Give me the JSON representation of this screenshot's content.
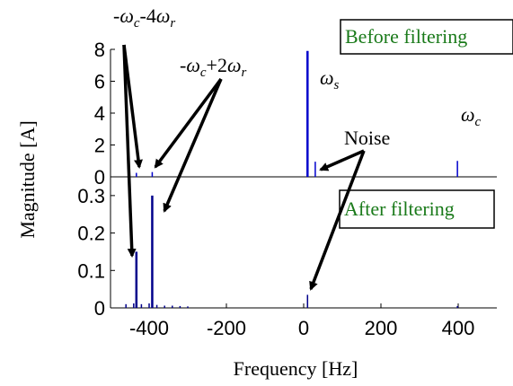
{
  "chart_data": [
    {
      "panel": "top",
      "type": "line",
      "title": "",
      "legend_box": "Before filtering",
      "ylabel": "Magnitude [A]",
      "ylim": [
        0,
        8
      ],
      "yticks": [
        "0",
        "2",
        "4",
        "6",
        "8"
      ],
      "xlim": [
        -500,
        500
      ],
      "series": [
        {
          "color": "#0000cc",
          "x": [
            -433,
            -392,
            10,
            30,
            398
          ],
          "values": [
            0.25,
            0.3,
            7.9,
            0.95,
            1.0
          ]
        }
      ]
    },
    {
      "panel": "bottom",
      "type": "line",
      "title": "",
      "legend_box": "After filtering",
      "xlabel": "Frequency [Hz]",
      "ylim": [
        0,
        0.35
      ],
      "yticks": [
        "0",
        "0.1",
        "0.2",
        "0.3"
      ],
      "xlim": [
        -500,
        500
      ],
      "xticks": [
        "-400",
        "-200",
        "0",
        "200",
        "400"
      ],
      "series": [
        {
          "color": "#00008b",
          "x": [
            -460,
            -440,
            -433,
            -420,
            -400,
            -392,
            -380,
            -360,
            -340,
            -320,
            -300,
            10,
            398
          ],
          "values": [
            0.01,
            0.012,
            0.15,
            0.01,
            0.012,
            0.3,
            0.008,
            0.006,
            0.006,
            0.005,
            0.004,
            0.035,
            0.005
          ]
        }
      ]
    }
  ],
  "annotations": {
    "label1_a": "-",
    "label1_b": "ω",
    "label1_bsub": "c",
    "label1_c": "-4",
    "label1_d": "ω",
    "label1_dsub": "r",
    "label2_a": "-",
    "label2_b": "ω",
    "label2_bsub": "c",
    "label2_c": "+2",
    "label2_d": "ω",
    "label2_dsub": "r",
    "ws": "ω",
    "ws_sub": "s",
    "wc": "ω",
    "wc_sub": "c",
    "noise": "Noise"
  }
}
